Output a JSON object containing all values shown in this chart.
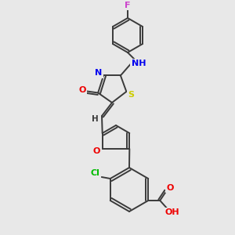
{
  "background_color": "#e8e8e8",
  "bond_color": "#3a3a3a",
  "atom_colors": {
    "F": "#cc44cc",
    "N": "#0000ee",
    "H": "#3a3a3a",
    "O": "#ee0000",
    "S": "#cccc00",
    "Cl": "#00bb00",
    "C": "#3a3a3a"
  },
  "figsize": [
    3.0,
    3.0
  ],
  "dpi": 100
}
